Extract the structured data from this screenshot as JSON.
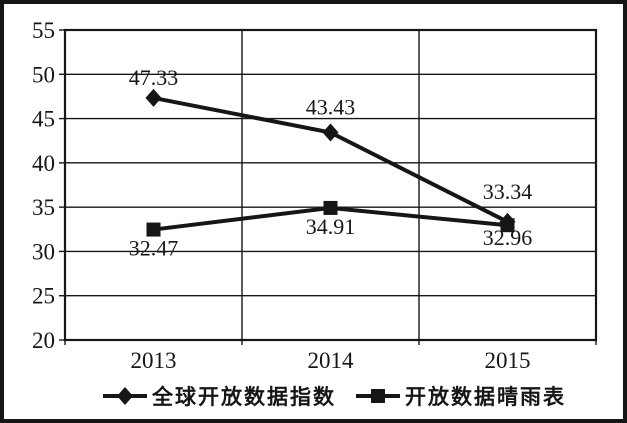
{
  "chart_data": {
    "type": "line",
    "categories": [
      "2013",
      "2014",
      "2015"
    ],
    "series": [
      {
        "name": "全球开放数据指数",
        "marker": "diamond",
        "values": [
          47.33,
          43.43,
          33.34
        ],
        "labels": [
          "47.33",
          "43.43",
          "33.34"
        ],
        "label_side": "above"
      },
      {
        "name": "开放数据晴雨表",
        "marker": "square",
        "values": [
          32.47,
          34.91,
          32.96
        ],
        "labels": [
          "32.47",
          "34.91",
          "32.96"
        ],
        "label_side": "below"
      }
    ],
    "ylim": [
      20,
      55
    ],
    "yticks": [
      55,
      50,
      45,
      40,
      35,
      30,
      25,
      20
    ],
    "grid": true,
    "legend_position": "bottom",
    "line_color": "#161616",
    "text_color": "#161616",
    "background": "#ffffff"
  }
}
